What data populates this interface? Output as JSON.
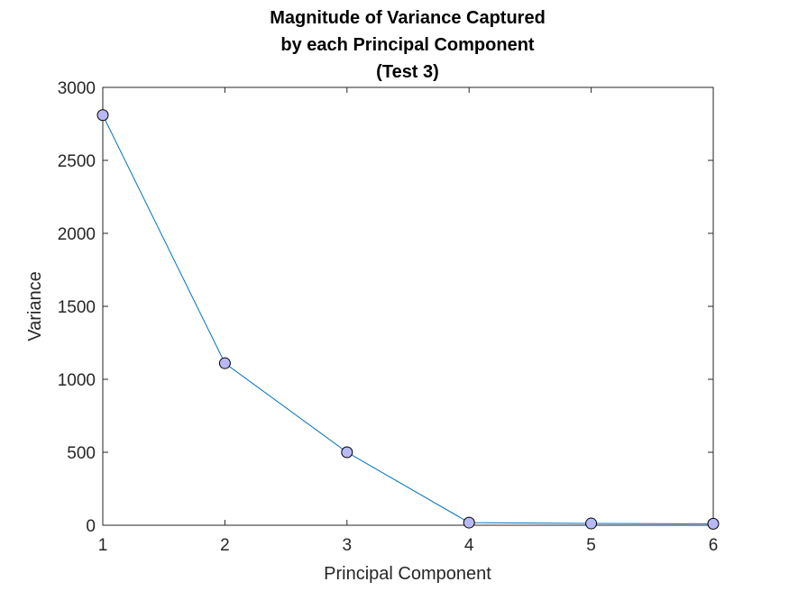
{
  "chart_data": {
    "type": "line",
    "title_lines": [
      "Magnitude of Variance Captured",
      "by each Principal Component",
      "(Test 3)"
    ],
    "xlabel": "Principal Component",
    "ylabel": "Variance",
    "x": [
      1,
      2,
      3,
      4,
      5,
      6
    ],
    "series": [
      {
        "values": [
          2810,
          1110,
          500,
          18,
          12,
          10
        ]
      }
    ],
    "xlim": [
      1,
      6
    ],
    "ylim": [
      0,
      3000
    ],
    "xticks": [
      "1",
      "2",
      "3",
      "4",
      "5",
      "6"
    ],
    "yticks": [
      "0",
      "500",
      "1000",
      "1500",
      "2000",
      "2500",
      "3000"
    ],
    "grid": false,
    "box": true,
    "colors": {
      "line": "#0072bd",
      "marker_fill": "#b8b8f5",
      "marker_edge": "#000000",
      "axis": "#262626"
    }
  }
}
